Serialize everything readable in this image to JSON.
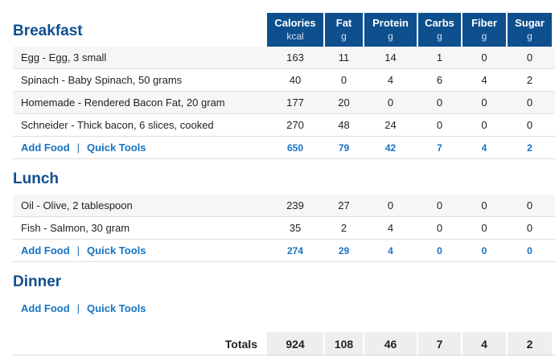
{
  "columns": [
    {
      "label": "Calories",
      "unit": "kcal"
    },
    {
      "label": "Fat",
      "unit": "g"
    },
    {
      "label": "Protein",
      "unit": "g"
    },
    {
      "label": "Carbs",
      "unit": "g"
    },
    {
      "label": "Fiber",
      "unit": "g"
    },
    {
      "label": "Sugar",
      "unit": "g"
    }
  ],
  "actions": {
    "add_food": "Add Food",
    "separator": "|",
    "quick_tools": "Quick Tools"
  },
  "meals": [
    {
      "title": "Breakfast",
      "foods": [
        {
          "name": "Egg - Egg, 3 small",
          "values": [
            "163",
            "11",
            "14",
            "1",
            "0",
            "0"
          ]
        },
        {
          "name": "Spinach - Baby Spinach, 50 grams",
          "values": [
            "40",
            "0",
            "4",
            "6",
            "4",
            "2"
          ]
        },
        {
          "name": "Homemade - Rendered Bacon Fat, 20 gram",
          "values": [
            "177",
            "20",
            "0",
            "0",
            "0",
            "0"
          ]
        },
        {
          "name": "Schneider - Thick bacon, 6 slices, cooked",
          "values": [
            "270",
            "48",
            "24",
            "0",
            "0",
            "0"
          ]
        }
      ],
      "subtotals": [
        "650",
        "79",
        "42",
        "7",
        "4",
        "2"
      ]
    },
    {
      "title": "Lunch",
      "foods": [
        {
          "name": "Oil - Olive, 2 tablespoon",
          "values": [
            "239",
            "27",
            "0",
            "0",
            "0",
            "0"
          ]
        },
        {
          "name": "Fish - Salmon, 30 gram",
          "values": [
            "35",
            "2",
            "4",
            "0",
            "0",
            "0"
          ]
        }
      ],
      "subtotals": [
        "274",
        "29",
        "4",
        "0",
        "0",
        "0"
      ]
    },
    {
      "title": "Dinner",
      "foods": [],
      "subtotals": []
    }
  ],
  "totals": {
    "label": "Totals",
    "values": [
      "924",
      "108",
      "46",
      "7",
      "4",
      "2"
    ]
  }
}
